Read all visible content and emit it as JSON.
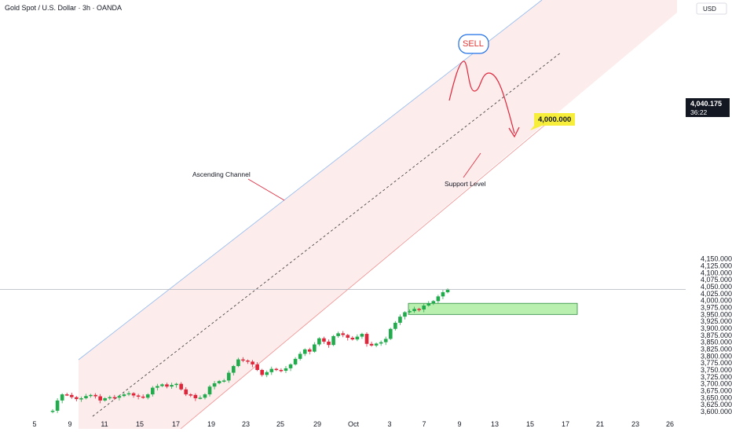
{
  "header": {
    "title": "Gold Spot / U.S. Dollar · 3h · OANDA",
    "currency_button": "USD"
  },
  "colors": {
    "up": "#26a69a",
    "down": "#ef5350",
    "candle_up": "#22ab4c",
    "candle_down": "#e0263b",
    "channel_fill": "#fdecec",
    "channel_upper_line": "#8fb9f0",
    "channel_lower_line": "#f28b8b",
    "midline": "#333333",
    "support_fill": "#b9f0b0",
    "support_border": "#2b8a3e",
    "projection": "#e0263b",
    "sell_bubble_border": "#1e6fe8",
    "target_label_bg": "#f7ee3c",
    "price_tag_bg": "#131722"
  },
  "chart_data": {
    "type": "candlestick",
    "title": "Gold Spot / U.S. Dollar · 3h · OANDA",
    "x_tick_labels": [
      "5",
      "9",
      "11",
      "15",
      "17",
      "19",
      "23",
      "25",
      "29",
      "Oct",
      "3",
      "7",
      "9",
      "13",
      "15",
      "17",
      "21",
      "23",
      "26"
    ],
    "y_tick_labels": [
      "3,600.000",
      "3,625.000",
      "3,650.000",
      "3,675.000",
      "3,700.000",
      "3,725.000",
      "3,750.000",
      "3,775.000",
      "3,800.000",
      "3,825.000",
      "3,850.000",
      "3,875.000",
      "3,900.000",
      "3,925.000",
      "3,950.000",
      "3,975.000",
      "4,000.000",
      "4,025.000",
      "4,050.000",
      "4,075.000",
      "4,100.000",
      "4,125.000",
      "4,150.000"
    ],
    "ylim": [
      3590,
      4190
    ],
    "current_price": {
      "value": "4,040.175",
      "countdown": "36:22"
    },
    "annotations": {
      "channel_label": "Ascending Channel",
      "support_label": "Support Level",
      "sell_label": "SELL",
      "target_label": "4,000.000"
    },
    "support_zone": {
      "low": 3950,
      "high": 3990
    },
    "target_value": 4000,
    "close_path": [
      3600,
      3603,
      3640,
      3662,
      3660,
      3652,
      3645,
      3648,
      3656,
      3660,
      3655,
      3640,
      3648,
      3652,
      3650,
      3656,
      3662,
      3666,
      3658,
      3654,
      3650,
      3662,
      3686,
      3692,
      3698,
      3690,
      3696,
      3700,
      3680,
      3662,
      3660,
      3648,
      3650,
      3662,
      3690,
      3702,
      3710,
      3712,
      3740,
      3764,
      3788,
      3784,
      3780,
      3770,
      3750,
      3732,
      3742,
      3754,
      3750,
      3747,
      3756,
      3770,
      3790,
      3808,
      3824,
      3816,
      3842,
      3864,
      3852,
      3840,
      3872,
      3882,
      3876,
      3866,
      3860,
      3870,
      3880,
      3844,
      3838,
      3845,
      3850,
      3862,
      3898,
      3920,
      3942,
      3958,
      3962,
      3970,
      3968,
      3982,
      3990,
      3998,
      4015,
      4030,
      4040
    ]
  }
}
